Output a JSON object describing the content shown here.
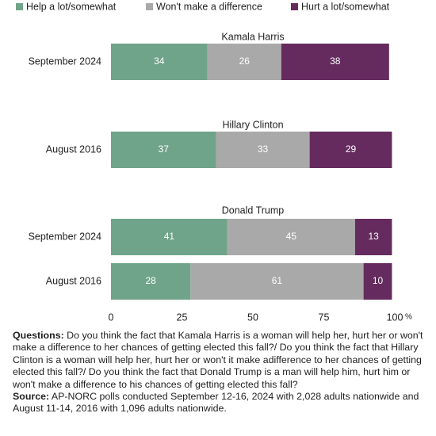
{
  "chart_data": [
    {
      "type": "bar",
      "orientation": "horizontal",
      "stacked": true,
      "title": "Kamala Harris",
      "categories": [
        "September 2024"
      ],
      "series": [
        {
          "name": "Help a lot/somewhat",
          "color": "#6fa48a",
          "values": [
            34
          ]
        },
        {
          "name": "Won't make a difference",
          "color": "#a9a9a9",
          "values": [
            26
          ]
        },
        {
          "name": "Hurt a lot/somewhat",
          "color": "#652b5f",
          "values": [
            38
          ]
        }
      ],
      "xlim": [
        0,
        100
      ]
    },
    {
      "type": "bar",
      "orientation": "horizontal",
      "stacked": true,
      "title": "Hillary Clinton",
      "categories": [
        "August 2016"
      ],
      "series": [
        {
          "name": "Help a lot/somewhat",
          "color": "#6fa48a",
          "values": [
            37
          ]
        },
        {
          "name": "Won't make a difference",
          "color": "#a9a9a9",
          "values": [
            33
          ]
        },
        {
          "name": "Hurt a lot/somewhat",
          "color": "#652b5f",
          "values": [
            29
          ]
        }
      ],
      "xlim": [
        0,
        100
      ]
    },
    {
      "type": "bar",
      "orientation": "horizontal",
      "stacked": true,
      "title": "Donald Trump",
      "categories": [
        "September 2024",
        "August 2016"
      ],
      "series": [
        {
          "name": "Help a lot/somewhat",
          "color": "#6fa48a",
          "values": [
            41,
            28
          ]
        },
        {
          "name": "Won't make a difference",
          "color": "#a9a9a9",
          "values": [
            45,
            61
          ]
        },
        {
          "name": "Hurt a lot/somewhat",
          "color": "#652b5f",
          "values": [
            13,
            10
          ]
        }
      ],
      "xlim": [
        0,
        100
      ],
      "xticks": [
        0,
        25,
        50,
        75,
        100
      ],
      "x_unit": "%"
    }
  ],
  "notes": [
    {
      "label": "Questions:",
      "text": " Do you think the fact that Kamala Harris is a woman will help her, hurt her or won't make a difference to her chances of getting elected this fall?/ Do you think the fact that Hillary Clinton is a woman will help her, hurt her or won't it make adifference to her chances of getting elected this fall?/ Do you think the fact that Donald Trump is a man will help him, hurt him or won't make a difference to his chances of getting elected this fall?"
    },
    {
      "label": "Source:",
      "text": " AP-NORC polls conducted September 12-16, 2024 with 2,028 adults nationwide and August 11-14, 2016 with 1,096 adults nationwide."
    }
  ]
}
